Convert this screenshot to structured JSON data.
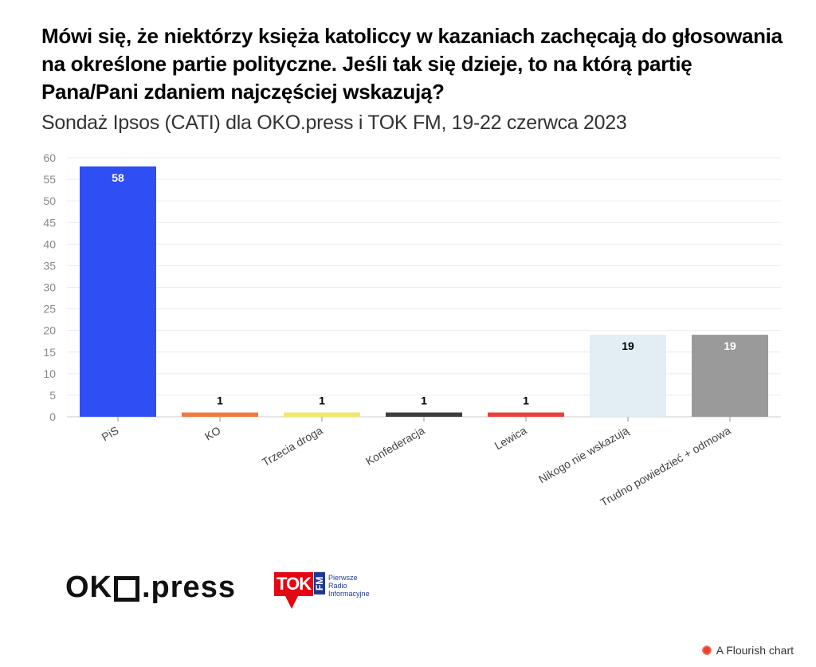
{
  "chart_data": {
    "type": "bar",
    "title": "Mówi się, że niektórzy księża katoliccy w kazaniach zachęcają do głosowania na określone partie polityczne. Jeśli tak się dzieje, to na którą partię Pana/Pani zdaniem najczęściej wskazują?",
    "subtitle": "Sondaż Ipsos (CATI) dla OKO.press i TOK FM, 19-22 czerwca 2023",
    "categories": [
      "PiS",
      "KO",
      "Trzecia droga",
      "Konfederacja",
      "Lewica",
      "Nikogo nie wskazują",
      "Trudno powiedzieć + odmowa"
    ],
    "values": [
      58,
      1,
      1,
      1,
      1,
      19,
      19
    ],
    "colors": [
      "#2f4ff5",
      "#ee7a3d",
      "#f1e86b",
      "#3d3d3d",
      "#e8413a",
      "#e2eef4",
      "#9a9a9a"
    ],
    "label_colors": [
      "#ffffff",
      "#000000",
      "#000000",
      "#000000",
      "#000000",
      "#000000",
      "#ffffff"
    ],
    "yticks": [
      0,
      5,
      10,
      15,
      20,
      25,
      30,
      35,
      40,
      45,
      50,
      55,
      60
    ],
    "ylim": [
      0,
      60
    ],
    "grid": true,
    "legend": "none"
  },
  "footer": {
    "oko_left": "OK",
    "oko_right": ".press",
    "tok_logo": "TOK",
    "tok_fm": "FM",
    "tok_text": [
      "Pierwsze",
      "Radio",
      "Informacyjne"
    ],
    "flourish": "A Flourish chart"
  }
}
